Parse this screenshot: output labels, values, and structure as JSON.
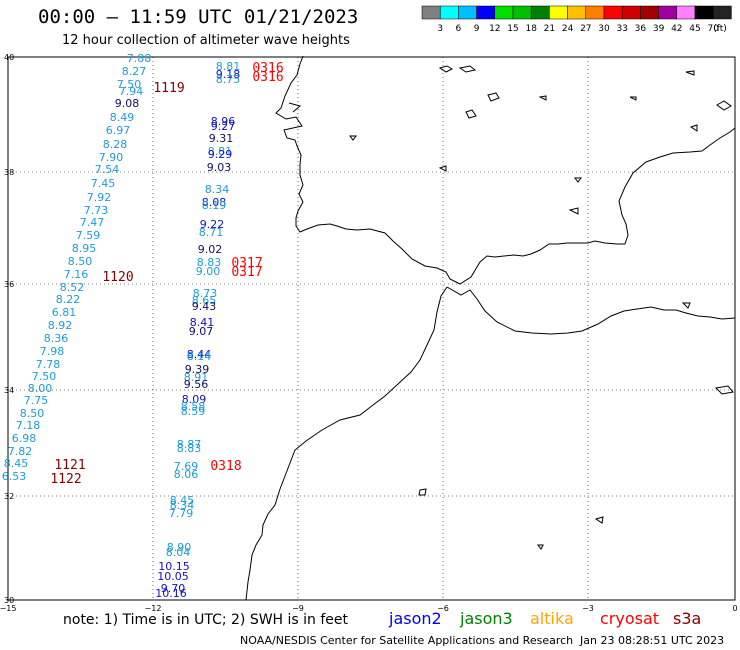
{
  "title": "00:00 – 11:59 UTC 01/21/2023",
  "subtitle": "12 hour collection of altimeter wave heights",
  "colorbar": {
    "labels": [
      "3",
      "6",
      "9",
      "12",
      "15",
      "18",
      "21",
      "24",
      "27",
      "30",
      "33",
      "36",
      "39",
      "42",
      "45",
      "70"
    ],
    "unit": "(ft)",
    "colors": [
      "#808080",
      "#00ffff",
      "#00bfff",
      "#0000ff",
      "#00e000",
      "#00c000",
      "#008000",
      "#ffff00",
      "#ffc000",
      "#ff8000",
      "#ff0000",
      "#d00000",
      "#a00000",
      "#a000a0",
      "#ff80ff",
      "#000000",
      "#222222"
    ]
  },
  "axes": {
    "y_labels": [
      "40",
      "38",
      "36",
      "34",
      "32",
      "30"
    ],
    "x_labels": [
      "−15",
      "−12",
      "−9",
      "−6",
      "−3",
      "0"
    ]
  },
  "note": "note:  1) Time is in UTC; 2) SWH is in feet",
  "legend": [
    {
      "label": "jason2",
      "color": "#0000ff"
    },
    {
      "label": "jason3",
      "color": "#008000"
    },
    {
      "label": "altika",
      "color": "#ffa500"
    },
    {
      "label": "cryosat",
      "color": "#ff0000"
    },
    {
      "label": "s3a",
      "color": "#800000"
    }
  ],
  "footer_credit": "NOAA/NESDIS Center for Satellite Applications and Research",
  "footer_time": "Jan 23 08:28:51 UTC 2023",
  "time_labels": [
    {
      "text": "1119",
      "color": "#800000"
    },
    {
      "text": "0316",
      "color": "#ff0000"
    },
    {
      "text": "0316",
      "color": "#ff0000"
    },
    {
      "text": "1120",
      "color": "#800000"
    },
    {
      "text": "0317",
      "color": "#ff0000"
    },
    {
      "text": "0317",
      "color": "#ff0000"
    },
    {
      "text": "0318",
      "color": "#ff0000"
    },
    {
      "text": "1121",
      "color": "#800000"
    },
    {
      "text": "1122",
      "color": "#800000"
    }
  ],
  "track_west": [
    "7.88",
    "8.27",
    "7.50",
    "7.94",
    "9.08",
    "8.49",
    "6.97",
    "8.28",
    "7.90",
    "7.54",
    "7.45",
    "7.92",
    "7.73",
    "7.47",
    "7.59",
    "8.95",
    "8.50",
    "7.16",
    "8.52",
    "8.22",
    "6.81",
    "8.92",
    "8.36",
    "7.98",
    "7.78",
    "7.50",
    "8.00",
    "7.75",
    "8.50",
    "7.18",
    "6.98",
    "7.82",
    "8.45",
    "6.53"
  ],
  "track_east": [
    "8.81",
    "9.18",
    "8.75",
    "8.96",
    "9.27",
    "9.31",
    "8.81",
    "9.29",
    "9.03",
    "8.34",
    "8.08",
    "8.19",
    "9.22",
    "8.71",
    "9.02",
    "8.83",
    "9.00",
    "8.73",
    "8.65",
    "9.43",
    "8.41",
    "9.07",
    "8.44",
    "8.14",
    "9.39",
    "8.91",
    "9.56",
    "8.09",
    "8.58",
    "8.59",
    "8.87",
    "8.83",
    "7.69",
    "8.06",
    "8.45",
    "8.34",
    "7.79",
    "8.90",
    "8.04",
    "10.15",
    "10.05",
    "9.70",
    "10.16"
  ]
}
